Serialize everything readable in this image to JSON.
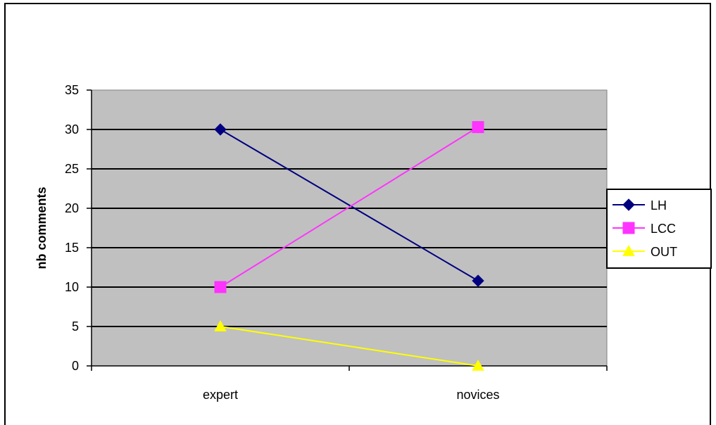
{
  "chart_data": {
    "type": "line",
    "categories": [
      "expert",
      "novices"
    ],
    "ylabel": "nb comments",
    "xlabel": "",
    "ylim": [
      0,
      35
    ],
    "yticks": [
      0,
      5,
      10,
      15,
      20,
      25,
      30,
      35
    ],
    "grid": true,
    "legend_position": "right",
    "plot_background": "#c0c0c0",
    "series": [
      {
        "name": "LH",
        "values": [
          30,
          10.8
        ],
        "color": "#000080",
        "marker": "diamond"
      },
      {
        "name": "LCC",
        "values": [
          10,
          30.3
        ],
        "color": "#ff33ff",
        "marker": "square"
      },
      {
        "name": "OUT",
        "values": [
          5,
          0
        ],
        "color": "#ffff00",
        "marker": "triangle"
      }
    ]
  }
}
